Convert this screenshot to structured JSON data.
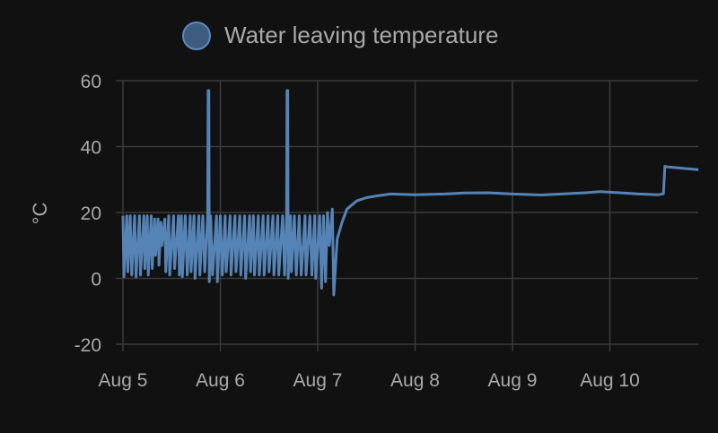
{
  "chart_data": {
    "type": "line",
    "title": "",
    "legend": [
      {
        "label": "Water leaving temperature",
        "color": "#5583b5"
      }
    ],
    "legend_position": "top-center",
    "xlabel": "",
    "ylabel": "°C",
    "ylim": [
      -20,
      60
    ],
    "yticks": [
      60,
      40,
      20,
      0,
      -20
    ],
    "xlim_days_since_aug5": [
      0,
      5.91
    ],
    "xticks": [
      {
        "day": 0,
        "label": "Aug 5"
      },
      {
        "day": 1,
        "label": "Aug 6"
      },
      {
        "day": 2,
        "label": "Aug 7"
      },
      {
        "day": 3,
        "label": "Aug 8"
      },
      {
        "day": 4,
        "label": "Aug 9"
      },
      {
        "day": 5,
        "label": "Aug 10"
      }
    ],
    "grid": true,
    "series": [
      {
        "name": "Water leaving temperature",
        "points": [
          [
            0,
            19
          ],
          [
            0.01,
            0.5
          ],
          [
            0.04,
            19
          ],
          [
            0.05,
            2
          ],
          [
            0.075,
            19
          ],
          [
            0.09,
            1
          ],
          [
            0.12,
            19
          ],
          [
            0.135,
            0.5
          ],
          [
            0.17,
            19
          ],
          [
            0.18,
            1
          ],
          [
            0.215,
            19
          ],
          [
            0.225,
            3
          ],
          [
            0.25,
            19
          ],
          [
            0.26,
            1
          ],
          [
            0.29,
            19
          ],
          [
            0.3,
            3
          ],
          [
            0.325,
            18
          ],
          [
            0.335,
            7
          ],
          [
            0.36,
            18
          ],
          [
            0.37,
            4
          ],
          [
            0.39,
            17
          ],
          [
            0.4,
            10
          ],
          [
            0.43,
            18
          ],
          [
            0.44,
            2
          ],
          [
            0.47,
            19
          ],
          [
            0.48,
            1
          ],
          [
            0.52,
            19
          ],
          [
            0.53,
            3
          ],
          [
            0.57,
            19
          ],
          [
            0.58,
            1
          ],
          [
            0.6,
            19
          ],
          [
            0.61,
            0.5
          ],
          [
            0.64,
            19
          ],
          [
            0.66,
            1
          ],
          [
            0.69,
            19
          ],
          [
            0.7,
            2
          ],
          [
            0.73,
            19
          ],
          [
            0.74,
            0
          ],
          [
            0.78,
            19
          ],
          [
            0.79,
            1
          ],
          [
            0.82,
            19
          ],
          [
            0.84,
            2
          ],
          [
            0.87,
            19
          ],
          [
            0.875,
            57
          ],
          [
            0.882,
            57
          ],
          [
            0.887,
            -1
          ],
          [
            0.9,
            19
          ],
          [
            0.92,
            1
          ],
          [
            0.96,
            19
          ],
          [
            0.97,
            -1
          ],
          [
            1.0,
            19
          ],
          [
            1.02,
            1
          ],
          [
            1.05,
            19
          ],
          [
            1.06,
            2
          ],
          [
            1.1,
            19
          ],
          [
            1.11,
            1
          ],
          [
            1.15,
            19
          ],
          [
            1.16,
            2
          ],
          [
            1.2,
            19
          ],
          [
            1.21,
            1
          ],
          [
            1.25,
            19
          ],
          [
            1.26,
            0
          ],
          [
            1.3,
            19
          ],
          [
            1.31,
            2
          ],
          [
            1.34,
            19
          ],
          [
            1.35,
            1
          ],
          [
            1.39,
            19
          ],
          [
            1.4,
            1
          ],
          [
            1.44,
            19
          ],
          [
            1.45,
            1
          ],
          [
            1.49,
            19
          ],
          [
            1.5,
            2
          ],
          [
            1.54,
            19
          ],
          [
            1.55,
            1
          ],
          [
            1.59,
            19
          ],
          [
            1.6,
            1
          ],
          [
            1.64,
            19
          ],
          [
            1.66,
            1
          ],
          [
            1.68,
            19
          ],
          [
            1.685,
            57
          ],
          [
            1.692,
            57
          ],
          [
            1.697,
            0
          ],
          [
            1.72,
            19
          ],
          [
            1.73,
            2
          ],
          [
            1.76,
            19
          ],
          [
            1.78,
            1
          ],
          [
            1.81,
            19
          ],
          [
            1.83,
            1
          ],
          [
            1.87,
            19
          ],
          [
            1.88,
            1
          ],
          [
            1.92,
            19
          ],
          [
            1.94,
            1
          ],
          [
            1.97,
            19
          ],
          [
            1.98,
            0
          ],
          [
            2.02,
            19
          ],
          [
            2.04,
            -3
          ],
          [
            2.06,
            19
          ],
          [
            2.08,
            -1
          ],
          [
            2.1,
            20
          ],
          [
            2.12,
            10
          ],
          [
            2.15,
            21
          ],
          [
            2.165,
            -5
          ],
          [
            2.2,
            12
          ],
          [
            2.25,
            17
          ],
          [
            2.3,
            21
          ],
          [
            2.4,
            23.5
          ],
          [
            2.5,
            24.5
          ],
          [
            2.6,
            25
          ],
          [
            2.75,
            25.6
          ],
          [
            3.0,
            25.4
          ],
          [
            3.3,
            25.6
          ],
          [
            3.5,
            25.9
          ],
          [
            3.75,
            26
          ],
          [
            4.0,
            25.6
          ],
          [
            4.3,
            25.3
          ],
          [
            4.5,
            25.6
          ],
          [
            4.75,
            26
          ],
          [
            4.9,
            26.3
          ],
          [
            5.1,
            26
          ],
          [
            5.3,
            25.6
          ],
          [
            5.5,
            25.4
          ],
          [
            5.55,
            25.7
          ],
          [
            5.565,
            34
          ],
          [
            5.6,
            33.8
          ],
          [
            5.75,
            33.4
          ],
          [
            5.91,
            33
          ]
        ]
      }
    ]
  }
}
